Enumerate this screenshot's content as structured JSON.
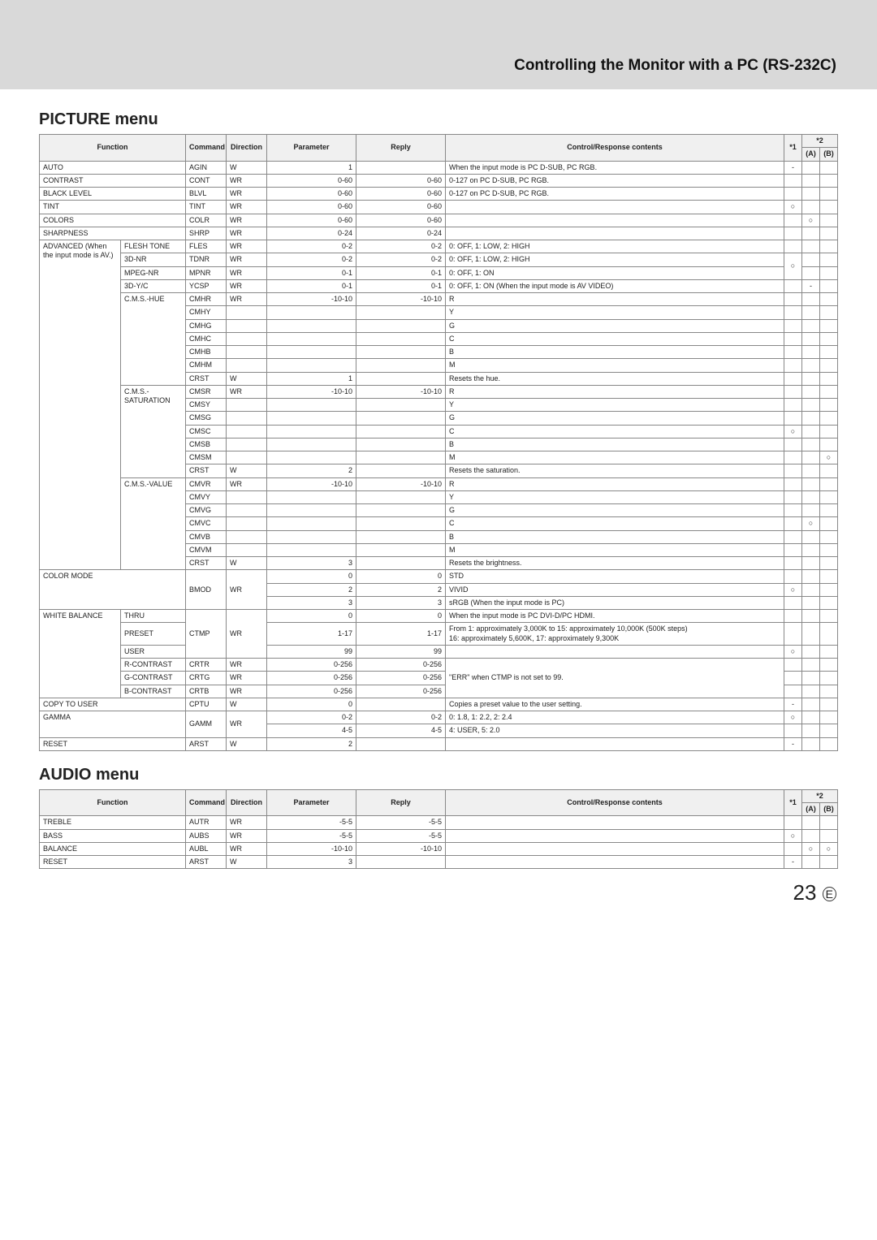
{
  "header": {
    "title": "Controlling the Monitor with a PC (RS-232C)"
  },
  "picture": {
    "title": "PICTURE menu",
    "cols": [
      "Function",
      "Command",
      "Direction",
      "Parameter",
      "Reply",
      "Control/Response contents",
      "*1",
      "*2",
      "(A)",
      "(B)"
    ],
    "rows": [
      {
        "func": "AUTO",
        "cmd": "AGIN",
        "dir": "W",
        "param": "1",
        "reply": "",
        "content": "When the input mode is PC D-SUB, PC RGB.",
        "s1": "-",
        "sA": "",
        "sB": ""
      },
      {
        "func": "CONTRAST",
        "cmd": "CONT",
        "dir": "WR",
        "param": "0-60",
        "reply": "0-60",
        "content": "0-127 on PC D-SUB, PC RGB."
      },
      {
        "func": "BLACK LEVEL",
        "cmd": "BLVL",
        "dir": "WR",
        "param": "0-60",
        "reply": "0-60",
        "content": "0-127 on PC D-SUB, PC RGB."
      },
      {
        "func": "TINT",
        "cmd": "TINT",
        "dir": "WR",
        "param": "0-60",
        "reply": "0-60",
        "content": "",
        "s1": "○"
      },
      {
        "func": "COLORS",
        "cmd": "COLR",
        "dir": "WR",
        "param": "0-60",
        "reply": "0-60",
        "content": "",
        "sA": "○"
      },
      {
        "func": "SHARPNESS",
        "cmd": "SHRP",
        "dir": "WR",
        "param": "0-24",
        "reply": "0-24",
        "content": ""
      }
    ],
    "advanced_label": "ADVANCED (When the input mode is AV.)",
    "advanced": [
      {
        "sub": "FLESH TONE",
        "cmd": "FLES",
        "dir": "WR",
        "param": "0-2",
        "reply": "0-2",
        "content": "0: OFF, 1: LOW, 2: HIGH"
      },
      {
        "sub": "3D-NR",
        "cmd": "TDNR",
        "dir": "WR",
        "param": "0-2",
        "reply": "0-2",
        "content": "0: OFF, 1: LOW, 2: HIGH"
      },
      {
        "sub": "MPEG-NR",
        "cmd": "MPNR",
        "dir": "WR",
        "param": "0-1",
        "reply": "0-1",
        "content": "0: OFF, 1: ON"
      },
      {
        "sub": "3D-Y/C",
        "cmd": "YCSP",
        "dir": "WR",
        "param": "0-1",
        "reply": "0-1",
        "content": "0: OFF, 1: ON   (When the input mode is AV VIDEO)",
        "sA": "-"
      }
    ],
    "cms_hue_label": "C.M.S.-HUE",
    "cms_hue": [
      {
        "cmd": "CMHR",
        "dir": "WR",
        "param": "-10-10",
        "reply": "-10-10",
        "content": "R"
      },
      {
        "cmd": "CMHY",
        "content": "Y"
      },
      {
        "cmd": "CMHG",
        "content": "G"
      },
      {
        "cmd": "CMHC",
        "content": "C"
      },
      {
        "cmd": "CMHB",
        "content": "B"
      },
      {
        "cmd": "CMHM",
        "content": "M"
      },
      {
        "cmd": "CRST",
        "dir": "W",
        "param": "1",
        "reply": "",
        "content": "Resets the hue."
      }
    ],
    "cms_sat_label": "C.M.S.-SATURATION",
    "cms_sat": [
      {
        "cmd": "CMSR",
        "dir": "WR",
        "param": "-10-10",
        "reply": "-10-10",
        "content": "R"
      },
      {
        "cmd": "CMSY",
        "content": "Y"
      },
      {
        "cmd": "CMSG",
        "content": "G"
      },
      {
        "cmd": "CMSC",
        "content": "C",
        "s1": "○"
      },
      {
        "cmd": "CMSB",
        "content": "B"
      },
      {
        "cmd": "CMSM",
        "content": "M",
        "sB": "○"
      },
      {
        "cmd": "CRST",
        "dir": "W",
        "param": "2",
        "reply": "",
        "content": "Resets the saturation."
      }
    ],
    "cms_val_label": "C.M.S.-VALUE",
    "cms_val": [
      {
        "cmd": "CMVR",
        "dir": "WR",
        "param": "-10-10",
        "reply": "-10-10",
        "content": "R"
      },
      {
        "cmd": "CMVY",
        "content": "Y"
      },
      {
        "cmd": "CMVG",
        "content": "G"
      },
      {
        "cmd": "CMVC",
        "content": "C",
        "sA": "○"
      },
      {
        "cmd": "CMVB",
        "content": "B"
      },
      {
        "cmd": "CMVM",
        "content": "M"
      },
      {
        "cmd": "CRST",
        "dir": "W",
        "param": "3",
        "reply": "",
        "content": "Resets the brightness."
      }
    ],
    "color_mode_label": "COLOR MODE",
    "color_mode": {
      "cmd": "BMOD",
      "dir": "WR",
      "rows": [
        {
          "param": "0",
          "reply": "0",
          "content": "STD"
        },
        {
          "param": "2",
          "reply": "2",
          "content": "VIVID",
          "s1": "○"
        },
        {
          "param": "3",
          "reply": "3",
          "content": "sRGB (When the input mode is PC)"
        }
      ]
    },
    "wb_label": "WHITE BALANCE",
    "wb": {
      "cmd": "CTMP",
      "dir": "WR",
      "rows": [
        {
          "sub": "THRU",
          "param": "0",
          "reply": "0",
          "content": "When the input mode is PC DVI-D/PC HDMI."
        },
        {
          "sub": "PRESET",
          "param": "1-17",
          "reply": "1-17",
          "content": "From 1: approximately 3,000K to 15: approximately 10,000K (500K steps)\n16: approximately 5,600K, 17: approximately 9,300K"
        },
        {
          "sub": "USER",
          "param": "99",
          "reply": "99",
          "content": "",
          "s1": "○"
        }
      ],
      "contrast": [
        {
          "sub": "R-CONTRAST",
          "cmd": "CRTR",
          "dir": "WR",
          "param": "0-256",
          "reply": "0-256",
          "content": "\"ERR\" when CTMP is not set to 99."
        },
        {
          "sub": "G-CONTRAST",
          "cmd": "CRTG",
          "dir": "WR",
          "param": "0-256",
          "reply": "0-256",
          "content": ""
        },
        {
          "sub": "B-CONTRAST",
          "cmd": "CRTB",
          "dir": "WR",
          "param": "0-256",
          "reply": "0-256",
          "content": ""
        }
      ]
    },
    "copy_to_user": {
      "func": "COPY TO USER",
      "cmd": "CPTU",
      "dir": "W",
      "param": "0",
      "reply": "",
      "content": "Copies a preset value to the user setting.",
      "s1": "-"
    },
    "gamma_label": "GAMMA",
    "gamma": {
      "cmd": "GAMM",
      "dir": "WR",
      "rows": [
        {
          "param": "0-2",
          "reply": "0-2",
          "content": "0: 1.8, 1: 2.2, 2: 2.4",
          "s1": "○"
        },
        {
          "param": "4-5",
          "reply": "4-5",
          "content": "4: USER, 5: 2.0"
        }
      ]
    },
    "reset": {
      "func": "RESET",
      "cmd": "ARST",
      "dir": "W",
      "param": "2",
      "reply": "",
      "content": "",
      "s1": "-"
    }
  },
  "audio": {
    "title": "AUDIO menu",
    "cols": [
      "Function",
      "Command",
      "Direction",
      "Parameter",
      "Reply",
      "Control/Response contents",
      "*1",
      "*2",
      "(A)",
      "(B)"
    ],
    "rows": [
      {
        "func": "TREBLE",
        "cmd": "AUTR",
        "dir": "WR",
        "param": "-5-5",
        "reply": "-5-5",
        "content": ""
      },
      {
        "func": "BASS",
        "cmd": "AUBS",
        "dir": "WR",
        "param": "-5-5",
        "reply": "-5-5",
        "content": "",
        "s1": "○"
      },
      {
        "func": "BALANCE",
        "cmd": "AUBL",
        "dir": "WR",
        "param": "-10-10",
        "reply": "-10-10",
        "content": "",
        "sA": "○",
        "sB": "○"
      },
      {
        "func": "RESET",
        "cmd": "ARST",
        "dir": "W",
        "param": "3",
        "reply": "",
        "content": "",
        "s1": "-"
      }
    ]
  },
  "pagenum": "23",
  "pagenum_suffix": "E"
}
